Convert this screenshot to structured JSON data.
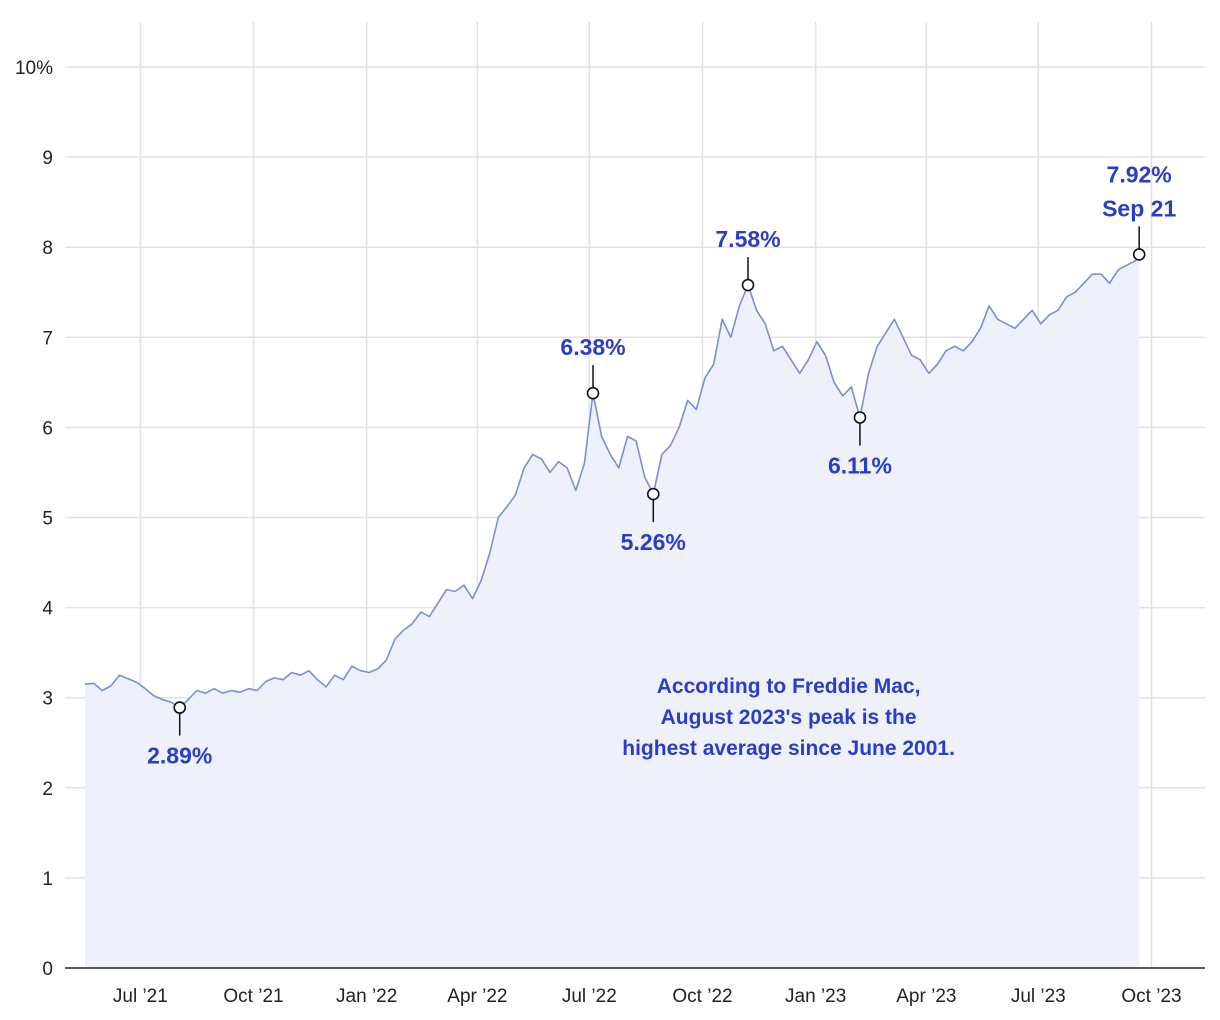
{
  "chart_data": {
    "type": "area",
    "title": "",
    "xlabel": "",
    "ylabel": "",
    "y_unit_suffix": "%",
    "ylim": [
      0,
      10
    ],
    "y_ticks": [
      0,
      1,
      2,
      3,
      4,
      5,
      6,
      7,
      8,
      9,
      10
    ],
    "y_tick_labels": [
      "0",
      "1",
      "2",
      "3",
      "4",
      "5",
      "6",
      "7",
      "8",
      "9",
      "10%"
    ],
    "xlim": [
      "2021-05-17",
      "2023-10-12"
    ],
    "x_ticks": [
      "2021-07-01",
      "2021-10-01",
      "2022-01-01",
      "2022-04-01",
      "2022-07-01",
      "2022-10-01",
      "2023-01-01",
      "2023-04-01",
      "2023-07-01",
      "2023-10-01"
    ],
    "x_tick_labels": [
      "Jul ’21",
      "Oct ’21",
      "Jan ’22",
      "Apr ’22",
      "Jul ’22",
      "Oct ’22",
      "Jan ’23",
      "Apr ’23",
      "Jul ’23",
      "Oct ’23"
    ],
    "grid": true,
    "colors": {
      "line": "#7b8fd4",
      "fill": "#eef0fa",
      "accent": "#2b3dc8",
      "grid": "#e2e2e2",
      "axis": "#222222"
    },
    "series": [
      {
        "points": [
          [
            "2021-05-17",
            3.15
          ],
          [
            "2021-05-24",
            3.16
          ],
          [
            "2021-05-31",
            3.08
          ],
          [
            "2021-06-07",
            3.13
          ],
          [
            "2021-06-14",
            3.25
          ],
          [
            "2021-06-21",
            3.21
          ],
          [
            "2021-06-28",
            3.17
          ],
          [
            "2021-07-05",
            3.1
          ],
          [
            "2021-07-12",
            3.02
          ],
          [
            "2021-07-19",
            2.98
          ],
          [
            "2021-07-26",
            2.95
          ],
          [
            "2021-08-02",
            2.89
          ],
          [
            "2021-08-09",
            2.98
          ],
          [
            "2021-08-16",
            3.08
          ],
          [
            "2021-08-23",
            3.05
          ],
          [
            "2021-08-30",
            3.1
          ],
          [
            "2021-09-06",
            3.05
          ],
          [
            "2021-09-13",
            3.08
          ],
          [
            "2021-09-20",
            3.06
          ],
          [
            "2021-09-27",
            3.1
          ],
          [
            "2021-10-04",
            3.08
          ],
          [
            "2021-10-11",
            3.18
          ],
          [
            "2021-10-18",
            3.22
          ],
          [
            "2021-10-25",
            3.2
          ],
          [
            "2021-11-01",
            3.28
          ],
          [
            "2021-11-08",
            3.25
          ],
          [
            "2021-11-15",
            3.3
          ],
          [
            "2021-11-22",
            3.2
          ],
          [
            "2021-11-29",
            3.12
          ],
          [
            "2021-12-06",
            3.25
          ],
          [
            "2021-12-13",
            3.2
          ],
          [
            "2021-12-20",
            3.35
          ],
          [
            "2021-12-27",
            3.3
          ],
          [
            "2022-01-03",
            3.28
          ],
          [
            "2022-01-10",
            3.32
          ],
          [
            "2022-01-17",
            3.42
          ],
          [
            "2022-01-24",
            3.65
          ],
          [
            "2022-01-31",
            3.75
          ],
          [
            "2022-02-07",
            3.82
          ],
          [
            "2022-02-14",
            3.95
          ],
          [
            "2022-02-21",
            3.9
          ],
          [
            "2022-02-28",
            4.05
          ],
          [
            "2022-03-07",
            4.2
          ],
          [
            "2022-03-14",
            4.18
          ],
          [
            "2022-03-21",
            4.25
          ],
          [
            "2022-03-28",
            4.1
          ],
          [
            "2022-04-04",
            4.3
          ],
          [
            "2022-04-11",
            4.6
          ],
          [
            "2022-04-18",
            5.0
          ],
          [
            "2022-04-25",
            5.12
          ],
          [
            "2022-05-02",
            5.25
          ],
          [
            "2022-05-09",
            5.55
          ],
          [
            "2022-05-16",
            5.7
          ],
          [
            "2022-05-23",
            5.65
          ],
          [
            "2022-05-30",
            5.5
          ],
          [
            "2022-06-06",
            5.62
          ],
          [
            "2022-06-13",
            5.55
          ],
          [
            "2022-06-20",
            5.3
          ],
          [
            "2022-06-27",
            5.6
          ],
          [
            "2022-07-04",
            6.38
          ],
          [
            "2022-07-11",
            5.9
          ],
          [
            "2022-07-18",
            5.7
          ],
          [
            "2022-07-25",
            5.55
          ],
          [
            "2022-08-01",
            5.9
          ],
          [
            "2022-08-08",
            5.85
          ],
          [
            "2022-08-15",
            5.45
          ],
          [
            "2022-08-22",
            5.26
          ],
          [
            "2022-08-29",
            5.7
          ],
          [
            "2022-09-05",
            5.8
          ],
          [
            "2022-09-12",
            6.0
          ],
          [
            "2022-09-19",
            6.3
          ],
          [
            "2022-09-26",
            6.2
          ],
          [
            "2022-10-03",
            6.55
          ],
          [
            "2022-10-10",
            6.7
          ],
          [
            "2022-10-17",
            7.2
          ],
          [
            "2022-10-24",
            7.0
          ],
          [
            "2022-10-31",
            7.35
          ],
          [
            "2022-11-07",
            7.58
          ],
          [
            "2022-11-14",
            7.3
          ],
          [
            "2022-11-21",
            7.15
          ],
          [
            "2022-11-28",
            6.85
          ],
          [
            "2022-12-05",
            6.9
          ],
          [
            "2022-12-12",
            6.75
          ],
          [
            "2022-12-19",
            6.6
          ],
          [
            "2022-12-26",
            6.75
          ],
          [
            "2023-01-02",
            6.95
          ],
          [
            "2023-01-09",
            6.8
          ],
          [
            "2023-01-16",
            6.5
          ],
          [
            "2023-01-23",
            6.35
          ],
          [
            "2023-01-30",
            6.45
          ],
          [
            "2023-02-06",
            6.11
          ],
          [
            "2023-02-13",
            6.6
          ],
          [
            "2023-02-20",
            6.9
          ],
          [
            "2023-02-27",
            7.05
          ],
          [
            "2023-03-06",
            7.2
          ],
          [
            "2023-03-13",
            7.0
          ],
          [
            "2023-03-20",
            6.8
          ],
          [
            "2023-03-27",
            6.75
          ],
          [
            "2023-04-03",
            6.6
          ],
          [
            "2023-04-10",
            6.7
          ],
          [
            "2023-04-17",
            6.85
          ],
          [
            "2023-04-24",
            6.9
          ],
          [
            "2023-05-01",
            6.85
          ],
          [
            "2023-05-08",
            6.95
          ],
          [
            "2023-05-15",
            7.1
          ],
          [
            "2023-05-22",
            7.35
          ],
          [
            "2023-05-29",
            7.2
          ],
          [
            "2023-06-05",
            7.15
          ],
          [
            "2023-06-12",
            7.1
          ],
          [
            "2023-06-19",
            7.2
          ],
          [
            "2023-06-26",
            7.3
          ],
          [
            "2023-07-03",
            7.15
          ],
          [
            "2023-07-10",
            7.25
          ],
          [
            "2023-07-17",
            7.3
          ],
          [
            "2023-07-24",
            7.45
          ],
          [
            "2023-07-31",
            7.5
          ],
          [
            "2023-08-07",
            7.6
          ],
          [
            "2023-08-14",
            7.7
          ],
          [
            "2023-08-21",
            7.7
          ],
          [
            "2023-08-28",
            7.6
          ],
          [
            "2023-09-04",
            7.75
          ],
          [
            "2023-09-11",
            7.8
          ],
          [
            "2023-09-18",
            7.85
          ],
          [
            "2023-09-21",
            7.92
          ]
        ]
      }
    ],
    "annotations": [
      {
        "date": "2021-08-02",
        "value": 2.89,
        "lines": [
          "2.89%"
        ],
        "position": "below"
      },
      {
        "date": "2022-07-04",
        "value": 6.38,
        "lines": [
          "6.38%"
        ],
        "position": "above"
      },
      {
        "date": "2022-08-22",
        "value": 5.26,
        "lines": [
          "5.26%"
        ],
        "position": "below"
      },
      {
        "date": "2022-11-07",
        "value": 7.58,
        "lines": [
          "7.58%"
        ],
        "position": "above"
      },
      {
        "date": "2023-02-06",
        "value": 6.11,
        "lines": [
          "6.11%"
        ],
        "position": "below"
      },
      {
        "date": "2023-09-21",
        "value": 7.92,
        "lines": [
          "7.92%",
          "Sep 21"
        ],
        "position": "above"
      }
    ],
    "note": {
      "lines": [
        "According to Freddie Mac,",
        "August 2023's peak is the",
        "highest average since June 2001."
      ],
      "anchor_date": "2022-12-10",
      "anchor_value": 3.05
    }
  }
}
